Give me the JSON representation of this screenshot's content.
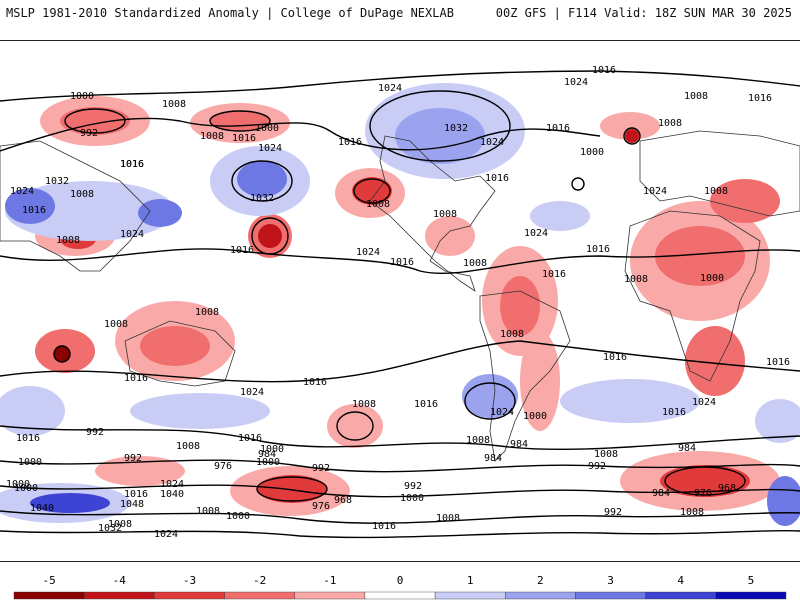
{
  "header": {
    "left_title": "MSLP 1981-2010 Standardized Anomaly | College of DuPage NEXLAB",
    "right_title": "00Z GFS | F114 Valid: 18Z SUN MAR 30 2025"
  },
  "colorbar": {
    "ticks": [
      "-5",
      "-4",
      "-3",
      "-2",
      "-1",
      "0",
      "1",
      "2",
      "3",
      "4",
      "5"
    ],
    "colors": [
      "#8b0000",
      "#c0141a",
      "#e03a3a",
      "#f06e6e",
      "#f9aaa8",
      "#ffffff",
      "#c9cdf6",
      "#9ba3ee",
      "#6e78e4",
      "#3d44d4",
      "#0a0ab4"
    ]
  },
  "map": {
    "contour_labels": [
      "1000",
      "1008",
      "992",
      "1008",
      "1016",
      "1000",
      "1016",
      "1024",
      "1032",
      "1024",
      "1016",
      "1008",
      "1016",
      "1032",
      "1024",
      "1016",
      "1008",
      "1024",
      "1016",
      "1032",
      "1024",
      "1008",
      "1016",
      "1008",
      "1016",
      "1016",
      "1024",
      "1016",
      "1000",
      "1008",
      "1008",
      "1016",
      "1024",
      "1008",
      "1008",
      "1008",
      "1016",
      "1008",
      "1016",
      "1008",
      "1000",
      "1016",
      "1024",
      "1016",
      "1016",
      "1024",
      "1016",
      "1008",
      "1024",
      "1008",
      "1000",
      "1016",
      "992",
      "1016",
      "1008",
      "1016",
      "1000",
      "1008",
      "992",
      "1000",
      "1024",
      "984",
      "1000",
      "984",
      "976",
      "984",
      "992",
      "976",
      "968",
      "1016",
      "1024",
      "1040",
      "1040",
      "1048",
      "1032",
      "1024",
      "1008",
      "1000",
      "1000",
      "992",
      "1008",
      "1000",
      "1016",
      "992",
      "1008",
      "984",
      "976",
      "968",
      "1008",
      "1024",
      "1016",
      "1008",
      "984",
      "992",
      "1000"
    ]
  }
}
